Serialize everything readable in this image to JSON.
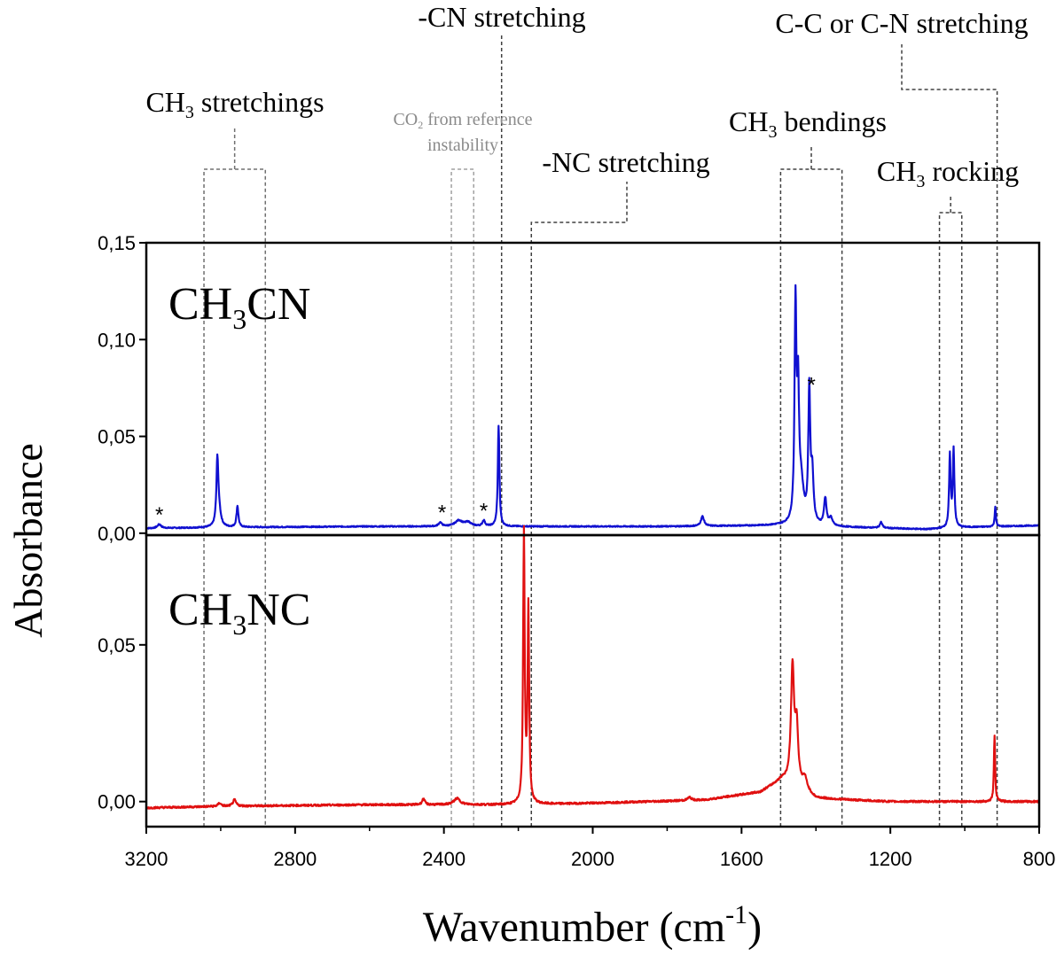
{
  "chart_data": {
    "type": "line",
    "xlabel": "Wavenumber (cm",
    "xlabel_sup": "-1",
    "xlabel_end": ")",
    "ylabel": "Absorbance",
    "xlim": [
      3200,
      800
    ],
    "x_ticks": [
      "3200",
      "2800",
      "2400",
      "2000",
      "1600",
      "1200",
      "800"
    ],
    "panels": [
      {
        "name_parts": [
          "CH",
          "3",
          "CN"
        ],
        "color": "#1010d0",
        "ylim": [
          -0.001,
          0.15
        ],
        "y_ticks": [
          {
            "v": 0.15,
            "label": "0,15"
          },
          {
            "v": 0.1,
            "label": "0,10"
          },
          {
            "v": 0.05,
            "label": "0,05"
          },
          {
            "v": 0.0,
            "label": "0,00"
          }
        ],
        "baseline": [
          [
            3200,
            0.0025
          ],
          [
            3000,
            0.003
          ],
          [
            2600,
            0.0035
          ],
          [
            2200,
            0.0035
          ],
          [
            1800,
            0.0035
          ],
          [
            1500,
            0.004
          ],
          [
            1300,
            0.003
          ],
          [
            1100,
            0.002
          ],
          [
            1000,
            0.003
          ],
          [
            800,
            0.004
          ]
        ],
        "peaks": [
          {
            "x": 3165,
            "h": 0.002,
            "w": 6
          },
          {
            "x": 3009,
            "h": 0.032,
            "w": 3
          },
          {
            "x": 3005,
            "h": 0.008,
            "w": 6
          },
          {
            "x": 2955,
            "h": 0.011,
            "w": 3
          },
          {
            "x": 2410,
            "h": 0.002,
            "w": 5
          },
          {
            "x": 2360,
            "h": 0.003,
            "w": 12
          },
          {
            "x": 2335,
            "h": 0.002,
            "w": 10
          },
          {
            "x": 2293,
            "h": 0.003,
            "w": 4
          },
          {
            "x": 2253,
            "h": 0.052,
            "w": 2.5
          },
          {
            "x": 1705,
            "h": 0.005,
            "w": 5
          },
          {
            "x": 1455,
            "h": 0.11,
            "w": 3
          },
          {
            "x": 1448,
            "h": 0.06,
            "w": 3
          },
          {
            "x": 1440,
            "h": 0.02,
            "w": 8
          },
          {
            "x": 1418,
            "h": 0.068,
            "w": 3
          },
          {
            "x": 1410,
            "h": 0.025,
            "w": 4
          },
          {
            "x": 1375,
            "h": 0.014,
            "w": 4
          },
          {
            "x": 1360,
            "h": 0.004,
            "w": 5
          },
          {
            "x": 1225,
            "h": 0.003,
            "w": 4
          },
          {
            "x": 1040,
            "h": 0.037,
            "w": 2.5
          },
          {
            "x": 1030,
            "h": 0.04,
            "w": 2.5
          },
          {
            "x": 918,
            "h": 0.01,
            "w": 2
          }
        ],
        "asterisks": [
          {
            "x": 3165,
            "y": 0.005,
            "label": "*"
          },
          {
            "x": 2405,
            "y": 0.006,
            "label": "*"
          },
          {
            "x": 2293,
            "y": 0.007,
            "label": "*"
          },
          {
            "x": 1412,
            "y": 0.072,
            "label": "*"
          }
        ]
      },
      {
        "name_parts": [
          "CH",
          "3",
          "NC"
        ],
        "color": "#e01010",
        "ylim": [
          -0.008,
          0.085
        ],
        "y_ticks": [
          {
            "v": 0.05,
            "label": "0,05"
          },
          {
            "v": 0.0,
            "label": "0,00"
          }
        ],
        "baseline": [
          [
            3200,
            -0.002
          ],
          [
            3000,
            -0.0015
          ],
          [
            2600,
            -0.001
          ],
          [
            2200,
            -0.001
          ],
          [
            2000,
            -0.0005
          ],
          [
            1700,
            0.0005
          ],
          [
            1550,
            0.003
          ],
          [
            1490,
            0.007
          ],
          [
            1400,
            0.001
          ],
          [
            1200,
            0.0
          ],
          [
            1000,
            0.0
          ],
          [
            800,
            0.0
          ]
        ],
        "peaks": [
          {
            "x": 3003,
            "h": 0.001,
            "w": 5
          },
          {
            "x": 2963,
            "h": 0.002,
            "w": 5
          },
          {
            "x": 2455,
            "h": 0.002,
            "w": 4
          },
          {
            "x": 2365,
            "h": 0.002,
            "w": 10
          },
          {
            "x": 2185,
            "h": 0.086,
            "w": 2.5
          },
          {
            "x": 2173,
            "h": 0.062,
            "w": 2.5
          },
          {
            "x": 1740,
            "h": 0.001,
            "w": 6
          },
          {
            "x": 1463,
            "h": 0.037,
            "w": 5
          },
          {
            "x": 1452,
            "h": 0.018,
            "w": 5
          },
          {
            "x": 1430,
            "h": 0.004,
            "w": 8
          },
          {
            "x": 920,
            "h": 0.021,
            "w": 2
          }
        ],
        "asterisks": []
      }
    ],
    "annotations": [
      {
        "id": "ch3-stretch",
        "text_parts": [
          "CH",
          "3",
          " stretchings"
        ],
        "color": "#000000",
        "box": [
          3045,
          2880
        ],
        "dashed_color": "#707070"
      },
      {
        "id": "co2",
        "text_line1_parts": [
          "CO",
          "2",
          " from reference"
        ],
        "text_line2": "instability",
        "color": "#8a8a8a",
        "box": [
          2380,
          2320
        ],
        "dashed_color": "#a0a0a0"
      },
      {
        "id": "cn-stretch",
        "text": "-CN stretching",
        "color": "#000000",
        "line_x": 2245,
        "dashed_color": "#404040"
      },
      {
        "id": "nc-stretch",
        "text": "-NC stretching",
        "color": "#000000",
        "line_x": 2165,
        "dashed_color": "#404040"
      },
      {
        "id": "ch3-bend",
        "text_parts": [
          "CH",
          "3",
          " bendings"
        ],
        "color": "#000000",
        "box": [
          1495,
          1330
        ],
        "dashed_color": "#404040"
      },
      {
        "id": "ch3-rock",
        "text_parts": [
          "CH",
          "3",
          " rocking"
        ],
        "color": "#000000",
        "box": [
          1068,
          1008
        ],
        "dashed_color": "#404040"
      },
      {
        "id": "cc-cn-stretch",
        "text": "C-C or C-N stretching",
        "color": "#000000",
        "line_x": 913,
        "dashed_color": "#404040"
      }
    ]
  }
}
